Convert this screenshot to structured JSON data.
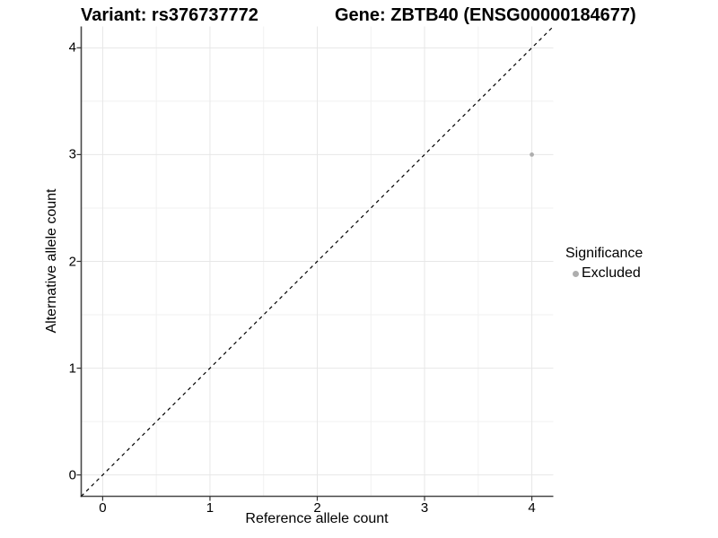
{
  "header": {
    "left_title": "Variant: rs376737772",
    "right_title": "Gene: ZBTB40 (ENSG00000184677)"
  },
  "chart_data": {
    "type": "scatter",
    "title": "Variant: rs376737772 / Gene: ZBTB40 (ENSG00000184677)",
    "xlabel": "Reference allele count",
    "ylabel": "Alternative allele count",
    "xlim": [
      -0.2,
      4.2
    ],
    "ylim": [
      -0.2,
      4.2
    ],
    "x_ticks": [
      0,
      1,
      2,
      3,
      4
    ],
    "y_ticks": [
      0,
      1,
      2,
      3,
      4
    ],
    "x_minor_ticks": [
      0.5,
      1.5,
      2.5,
      3.5
    ],
    "y_minor_ticks": [
      0.5,
      1.5,
      2.5,
      3.5
    ],
    "grid": "major+minor",
    "series": [
      {
        "name": "Excluded",
        "color": "#aeaeae",
        "points": [
          {
            "x": 4,
            "y": 3
          }
        ]
      }
    ],
    "identity_line": {
      "type": "dashed",
      "equation": "y = x",
      "from": [
        -0.2,
        -0.2
      ],
      "to": [
        4.2,
        4.2
      ],
      "color": "#000000"
    },
    "legend": {
      "title": "Significance",
      "position": "right",
      "items": [
        {
          "label": "Excluded",
          "color": "#aeaeae"
        }
      ]
    }
  },
  "colors": {
    "background": "#ffffff",
    "grid_major": "#e7e7e7",
    "grid_minor": "#f1f1f1",
    "axis_line": "#474747",
    "tick": "#333333",
    "point": "#aeaeae",
    "dashed_line": "#000000",
    "text": "#000000"
  }
}
